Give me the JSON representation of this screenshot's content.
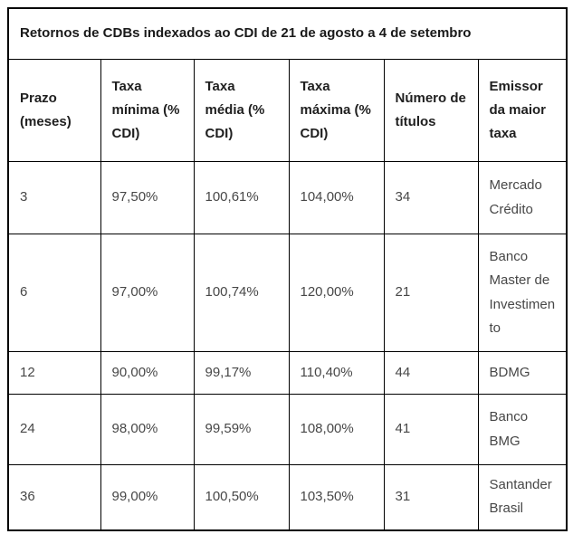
{
  "table": {
    "title": "Retornos de CDBs indexados ao CDI de 21 de agosto a 4 de setembro",
    "columns": [
      "Prazo (meses)",
      "Taxa mínima (% CDI)",
      "Taxa média (% CDI)",
      "Taxa máxima (% CDI)",
      "Número de títulos",
      "Emissor da maior taxa"
    ],
    "rows": [
      [
        "3",
        "97,50%",
        "100,61%",
        "104,00%",
        "34",
        "Mercado Crédito"
      ],
      [
        "6",
        "97,00%",
        "100,74%",
        "120,00%",
        "21",
        "Banco Master de Investimento"
      ],
      [
        "12",
        "90,00%",
        "99,17%",
        "110,40%",
        "44",
        "BDMG"
      ],
      [
        "24",
        "98,00%",
        "99,59%",
        "108,00%",
        "41",
        "Banco BMG"
      ],
      [
        "36",
        "99,00%",
        "100,50%",
        "103,50%",
        "31",
        "Santander Brasil"
      ]
    ],
    "colors": {
      "border": "#000000",
      "title_text": "#1a1a1a",
      "header_text": "#1f1f1f",
      "cell_text": "#474747",
      "background": "#ffffff"
    }
  }
}
